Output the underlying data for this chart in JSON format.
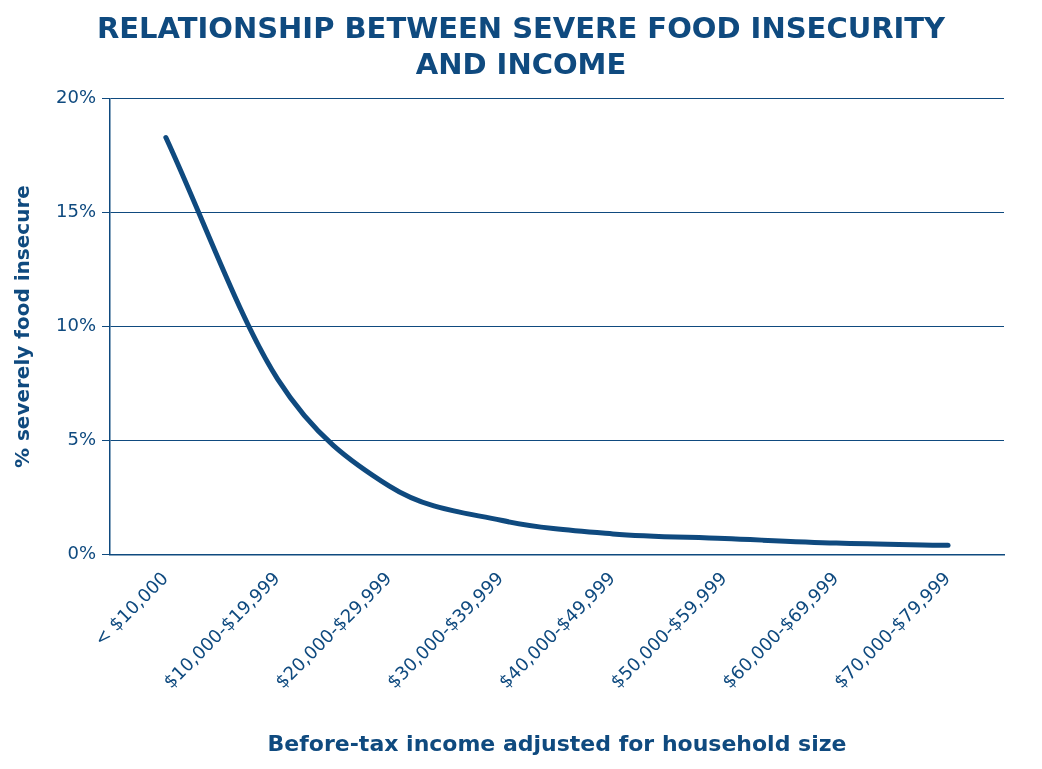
{
  "chart_data": {
    "type": "line",
    "title": "RELATIONSHIP BETWEEN SEVERE FOOD INSECURITY AND INCOME",
    "xlabel": "Before-tax income adjusted for household size",
    "ylabel": "% severely food insecure",
    "categories": [
      "< $10,000",
      "$10,000-$19,999",
      "$20,000-$29,999",
      "$30,000-$39,999",
      "$40,000-$49,999",
      "$50,000-$59,999",
      "$60,000-$69,999",
      "$70,000-$79,999"
    ],
    "series": [
      {
        "color": "#0f4a7f",
        "values": [
          18.3,
          7.7,
          3.0,
          1.5,
          0.9,
          0.7,
          0.5,
          0.4
        ]
      }
    ],
    "ylim": [
      0,
      20
    ],
    "yticks": [
      {
        "value": 0,
        "label": "0%"
      },
      {
        "value": 5,
        "label": "5%"
      },
      {
        "value": 10,
        "label": "10%"
      },
      {
        "value": 15,
        "label": "15%"
      },
      {
        "value": 20,
        "label": "20%"
      }
    ],
    "grid": "y",
    "legend": false,
    "marker": "none",
    "line_style": "solid"
  }
}
